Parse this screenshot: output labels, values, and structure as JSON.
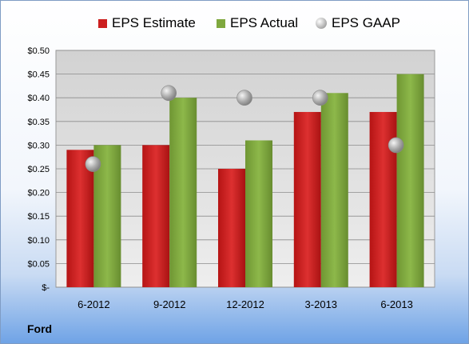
{
  "chart_data": {
    "type": "bar",
    "title": "",
    "xlabel": "",
    "ylabel": "",
    "categories": [
      "6-2012",
      "9-2012",
      "12-2012",
      "3-2013",
      "6-2013"
    ],
    "series": [
      {
        "name": "EPS Estimate",
        "kind": "bar",
        "color": "#cc1f1f",
        "values": [
          0.29,
          0.3,
          0.25,
          0.37,
          0.37
        ]
      },
      {
        "name": "EPS Actual",
        "kind": "bar",
        "color": "#7fa83e",
        "values": [
          0.3,
          0.4,
          0.31,
          0.41,
          0.45
        ]
      },
      {
        "name": "EPS GAAP",
        "kind": "marker",
        "color": "#a8a8a8",
        "values": [
          0.26,
          0.41,
          0.4,
          0.4,
          0.3
        ]
      }
    ],
    "ylim": [
      0,
      0.5
    ],
    "yticks": [
      0,
      0.05,
      0.1,
      0.15,
      0.2,
      0.25,
      0.3,
      0.35,
      0.4,
      0.45,
      0.5
    ],
    "ytick_labels": [
      "$-",
      "$0.05",
      "$0.10",
      "$0.15",
      "$0.20",
      "$0.25",
      "$0.30",
      "$0.35",
      "$0.40",
      "$0.45",
      "$0.50"
    ],
    "grid": true,
    "legend_position": "top"
  },
  "footer": {
    "company": "Ford"
  }
}
